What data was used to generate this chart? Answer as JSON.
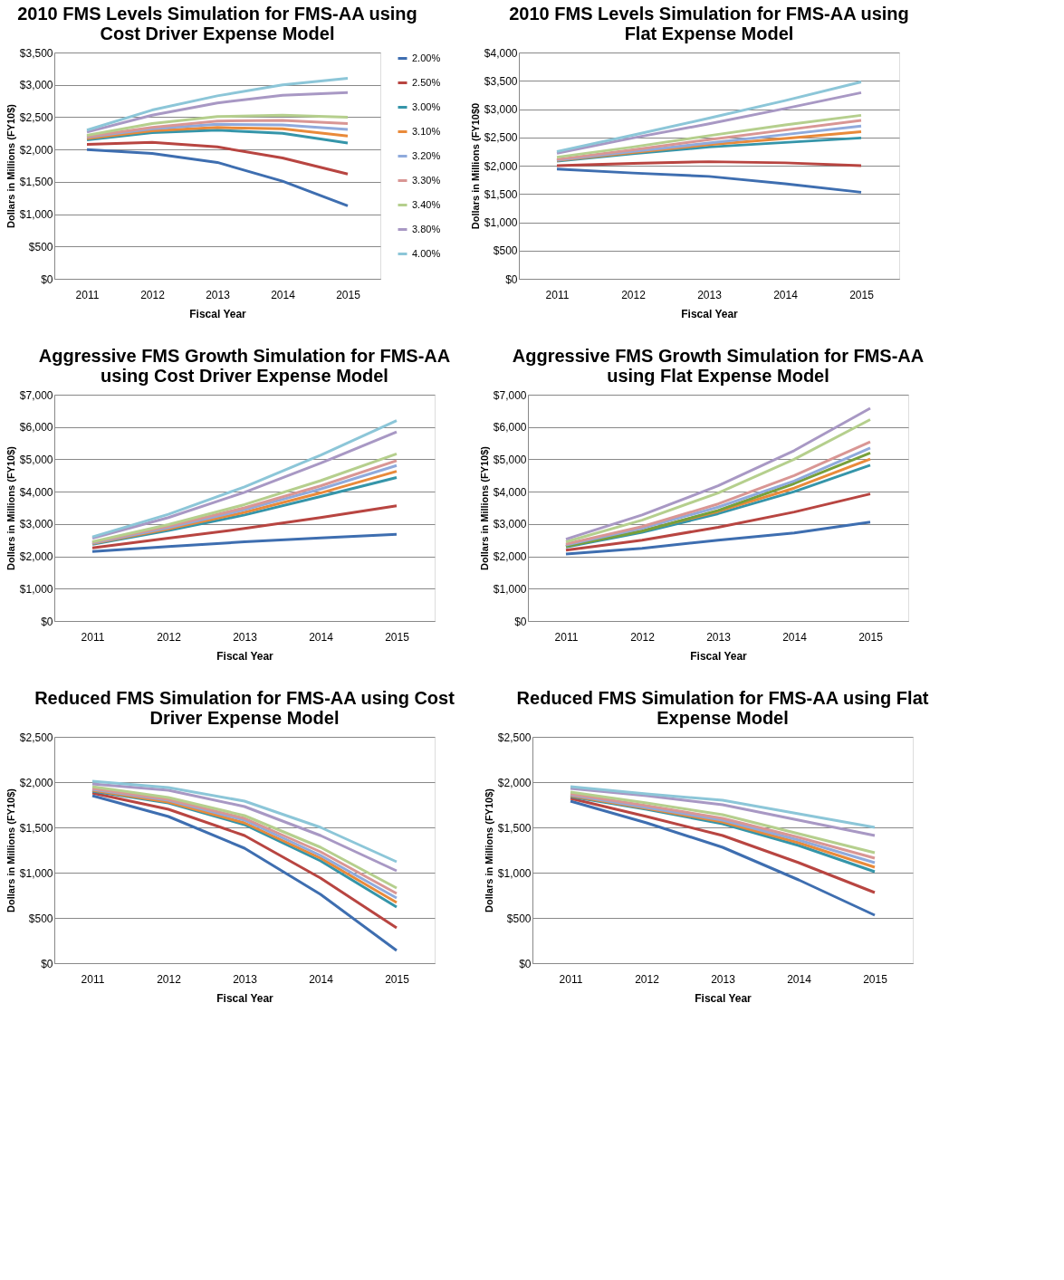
{
  "chart_data": [
    {
      "type": "line",
      "title": "2010 FMS Levels Simulation for FMS-AA using Cost Driver Expense Model",
      "xlabel": "Fiscal Year",
      "ylabel": "Dollars in Millions  (FY10$)",
      "categories": [
        "2011",
        "2012",
        "2013",
        "2014",
        "2015"
      ],
      "ylim": [
        0,
        3500
      ],
      "yticks": [
        {
          "value": 0,
          "label": "$0"
        },
        {
          "value": 500,
          "label": "$500"
        },
        {
          "value": 1000,
          "label": "$1,000"
        },
        {
          "value": 1500,
          "label": "$1,500"
        },
        {
          "value": 2000,
          "label": "$2,000"
        },
        {
          "value": 2500,
          "label": "$2,500"
        },
        {
          "value": 3000,
          "label": "$3,000"
        },
        {
          "value": 3500,
          "label": "$3,500"
        }
      ],
      "grid": "y",
      "legend": "right",
      "marker": "none",
      "series": [
        {
          "name": "2.00%",
          "color": "#3e6eb0",
          "values": [
            2000,
            1940,
            1800,
            1510,
            1130
          ]
        },
        {
          "name": "2.50%",
          "color": "#b84541",
          "values": [
            2080,
            2110,
            2040,
            1870,
            1620
          ]
        },
        {
          "name": "3.00%",
          "color": "#3595a9",
          "values": [
            2150,
            2260,
            2300,
            2250,
            2100
          ]
        },
        {
          "name": "3.10%",
          "color": "#e98a3a",
          "values": [
            2170,
            2290,
            2340,
            2320,
            2210
          ]
        },
        {
          "name": "3.20%",
          "color": "#8faadc",
          "values": [
            2190,
            2320,
            2390,
            2380,
            2310
          ]
        },
        {
          "name": "3.30%",
          "color": "#d99694",
          "values": [
            2200,
            2340,
            2440,
            2450,
            2400
          ]
        },
        {
          "name": "3.40%",
          "color": "#b5cf8d",
          "values": [
            2220,
            2400,
            2510,
            2530,
            2500
          ]
        },
        {
          "name": "3.80%",
          "color": "#a898c4",
          "values": [
            2270,
            2530,
            2720,
            2840,
            2880
          ]
        },
        {
          "name": "4.00%",
          "color": "#8cc6d8",
          "values": [
            2300,
            2610,
            2830,
            3000,
            3100
          ]
        }
      ]
    },
    {
      "type": "line",
      "title": "2010 FMS Levels Simulation for FMS-AA using Flat Expense Model",
      "xlabel": "Fiscal Year",
      "ylabel": "Dollars in Millions  (FY10$0",
      "categories": [
        "2011",
        "2012",
        "2013",
        "2014",
        "2015"
      ],
      "ylim": [
        0,
        4000
      ],
      "yticks": [
        {
          "value": 0,
          "label": "$0"
        },
        {
          "value": 500,
          "label": "$500"
        },
        {
          "value": 1000,
          "label": "$1,000"
        },
        {
          "value": 1500,
          "label": "$1,500"
        },
        {
          "value": 2000,
          "label": "$2,000"
        },
        {
          "value": 2500,
          "label": "$2,500"
        },
        {
          "value": 3000,
          "label": "$3,000"
        },
        {
          "value": 3500,
          "label": "$3,500"
        },
        {
          "value": 4000,
          "label": "$4,000"
        }
      ],
      "grid": "y",
      "marker": "none",
      "series": [
        {
          "color": "#3e6eb0",
          "values": [
            1940,
            1870,
            1810,
            1680,
            1530
          ]
        },
        {
          "color": "#b84541",
          "values": [
            2000,
            2040,
            2070,
            2050,
            2000
          ]
        },
        {
          "color": "#3595a9",
          "values": [
            2080,
            2210,
            2330,
            2410,
            2490
          ]
        },
        {
          "color": "#e98a3a",
          "values": [
            2090,
            2230,
            2370,
            2480,
            2600
          ]
        },
        {
          "color": "#8faadc",
          "values": [
            2100,
            2250,
            2400,
            2550,
            2700
          ]
        },
        {
          "color": "#d99694",
          "values": [
            2110,
            2280,
            2460,
            2630,
            2800
          ]
        },
        {
          "color": "#b5cf8d",
          "values": [
            2150,
            2330,
            2530,
            2720,
            2890
          ]
        },
        {
          "color": "#a898c4",
          "values": [
            2220,
            2490,
            2740,
            3010,
            3290
          ]
        },
        {
          "color": "#8cc6d8",
          "values": [
            2250,
            2540,
            2840,
            3150,
            3480
          ]
        }
      ]
    },
    {
      "type": "line",
      "title": "Aggressive FMS Growth Simulation for FMS-AA using Cost Driver Expense Model",
      "xlabel": "Fiscal Year",
      "ylabel": "Dollars in Millions  (FY10$)",
      "categories": [
        "2011",
        "2012",
        "2013",
        "2014",
        "2015"
      ],
      "ylim": [
        0,
        7000
      ],
      "yticks": [
        {
          "value": 0,
          "label": "$0"
        },
        {
          "value": 1000,
          "label": "$1,000"
        },
        {
          "value": 2000,
          "label": "$2,000"
        },
        {
          "value": 3000,
          "label": "$3,000"
        },
        {
          "value": 4000,
          "label": "$4,000"
        },
        {
          "value": 5000,
          "label": "$5,000"
        },
        {
          "value": 6000,
          "label": "$6,000"
        },
        {
          "value": 7000,
          "label": "$7,000"
        }
      ],
      "grid": "y",
      "marker": "none",
      "series": [
        {
          "color": "#3e6eb0",
          "values": [
            2150,
            2300,
            2450,
            2570,
            2680
          ]
        },
        {
          "color": "#b84541",
          "values": [
            2260,
            2560,
            2860,
            3200,
            3560
          ]
        },
        {
          "color": "#3595a9",
          "values": [
            2370,
            2800,
            3280,
            3850,
            4440
          ]
        },
        {
          "color": "#e98a3a",
          "values": [
            2390,
            2850,
            3360,
            3960,
            4630
          ]
        },
        {
          "color": "#8faadc",
          "values": [
            2410,
            2890,
            3440,
            4080,
            4810
          ]
        },
        {
          "color": "#d99694",
          "values": [
            2430,
            2930,
            3500,
            4180,
            4960
          ]
        },
        {
          "color": "#b5cf8d",
          "values": [
            2450,
            2980,
            3600,
            4340,
            5170
          ]
        },
        {
          "color": "#a898c4",
          "values": [
            2560,
            3200,
            3980,
            4880,
            5850
          ]
        },
        {
          "color": "#8cc6d8",
          "values": [
            2600,
            3300,
            4150,
            5130,
            6200
          ]
        }
      ]
    },
    {
      "type": "line",
      "title": "Aggressive FMS Growth Simulation for FMS-AA using Flat Expense Model",
      "xlabel": "Fiscal Year",
      "ylabel": "Dollars in Millions  (FY10$)",
      "categories": [
        "2011",
        "2012",
        "2013",
        "2014",
        "2015"
      ],
      "ylim": [
        0,
        7000
      ],
      "yticks": [
        {
          "value": 0,
          "label": "$0"
        },
        {
          "value": 1000,
          "label": "$1,000"
        },
        {
          "value": 2000,
          "label": "$2,000"
        },
        {
          "value": 3000,
          "label": "$3,000"
        },
        {
          "value": 4000,
          "label": "$4,000"
        },
        {
          "value": 5000,
          "label": "$5,000"
        },
        {
          "value": 6000,
          "label": "$6,000"
        },
        {
          "value": 7000,
          "label": "$7,000"
        }
      ],
      "grid": "y",
      "marker": "none",
      "series": [
        {
          "color": "#3e6eb0",
          "values": [
            2070,
            2250,
            2500,
            2720,
            3060
          ]
        },
        {
          "color": "#b84541",
          "values": [
            2190,
            2500,
            2900,
            3370,
            3930
          ]
        },
        {
          "color": "#3595a9",
          "values": [
            2290,
            2740,
            3320,
            4000,
            4820
          ]
        },
        {
          "color": "#e98a3a",
          "values": [
            2320,
            2790,
            3390,
            4110,
            5010
          ]
        },
        {
          "color": "#77a03a",
          "values": [
            2310,
            2780,
            3420,
            4250,
            5200
          ]
        },
        {
          "color": "#8faadc",
          "values": [
            2350,
            2870,
            3520,
            4330,
            5350
          ]
        },
        {
          "color": "#d99694",
          "values": [
            2380,
            2920,
            3620,
            4500,
            5540
          ]
        },
        {
          "color": "#b5cf8d",
          "values": [
            2450,
            3120,
            3960,
            5000,
            6230
          ]
        },
        {
          "color": "#a898c4",
          "values": [
            2530,
            3280,
            4180,
            5270,
            6580
          ]
        }
      ]
    },
    {
      "type": "line",
      "title": "Reduced FMS Simulation for FMS-AA using Cost Driver Expense Model",
      "xlabel": "Fiscal Year",
      "ylabel": "Dollars in Millions  (FY10$)",
      "categories": [
        "2011",
        "2012",
        "2013",
        "2014",
        "2015"
      ],
      "ylim": [
        0,
        2500
      ],
      "yticks": [
        {
          "value": 0,
          "label": "$0"
        },
        {
          "value": 500,
          "label": "$500"
        },
        {
          "value": 1000,
          "label": "$1,000"
        },
        {
          "value": 1500,
          "label": "$1,500"
        },
        {
          "value": 2000,
          "label": "$2,000"
        },
        {
          "value": 2500,
          "label": "$2,500"
        }
      ],
      "grid": "y",
      "marker": "none",
      "series": [
        {
          "color": "#3e6eb0",
          "values": [
            1850,
            1620,
            1270,
            760,
            140
          ]
        },
        {
          "color": "#b84541",
          "values": [
            1880,
            1700,
            1410,
            940,
            390
          ]
        },
        {
          "color": "#3595a9",
          "values": [
            1900,
            1770,
            1530,
            1130,
            620
          ]
        },
        {
          "color": "#e98a3a",
          "values": [
            1910,
            1780,
            1550,
            1160,
            670
          ]
        },
        {
          "color": "#8faadc",
          "values": [
            1920,
            1800,
            1580,
            1190,
            720
          ]
        },
        {
          "color": "#d99694",
          "values": [
            1930,
            1810,
            1600,
            1230,
            770
          ]
        },
        {
          "color": "#b5cf8d",
          "values": [
            1950,
            1830,
            1630,
            1280,
            830
          ]
        },
        {
          "color": "#a898c4",
          "values": [
            1980,
            1910,
            1730,
            1410,
            1020
          ]
        },
        {
          "color": "#8cc6d8",
          "values": [
            2010,
            1940,
            1790,
            1500,
            1120
          ]
        }
      ]
    },
    {
      "type": "line",
      "title": "Reduced FMS Simulation for FMS-AA using Flat Expense Model",
      "xlabel": "Fiscal Year",
      "ylabel": "Dollars in Millions  (FY10$)",
      "categories": [
        "2011",
        "2012",
        "2013",
        "2014",
        "2015"
      ],
      "ylim": [
        0,
        2500
      ],
      "yticks": [
        {
          "value": 0,
          "label": "$0"
        },
        {
          "value": 500,
          "label": "$500"
        },
        {
          "value": 1000,
          "label": "$1,000"
        },
        {
          "value": 1500,
          "label": "$1,500"
        },
        {
          "value": 2000,
          "label": "$2,000"
        },
        {
          "value": 2500,
          "label": "$2,500"
        }
      ],
      "grid": "y",
      "marker": "none",
      "series": [
        {
          "color": "#3e6eb0",
          "values": [
            1790,
            1550,
            1280,
            920,
            530
          ]
        },
        {
          "color": "#b84541",
          "values": [
            1820,
            1620,
            1410,
            1110,
            780
          ]
        },
        {
          "color": "#3595a9",
          "values": [
            1840,
            1700,
            1540,
            1300,
            1010
          ]
        },
        {
          "color": "#e98a3a",
          "values": [
            1850,
            1710,
            1560,
            1330,
            1060
          ]
        },
        {
          "color": "#8faadc",
          "values": [
            1860,
            1720,
            1580,
            1360,
            1110
          ]
        },
        {
          "color": "#d99694",
          "values": [
            1870,
            1740,
            1600,
            1390,
            1160
          ]
        },
        {
          "color": "#b5cf8d",
          "values": [
            1890,
            1770,
            1640,
            1430,
            1220
          ]
        },
        {
          "color": "#a898c4",
          "values": [
            1930,
            1850,
            1750,
            1580,
            1410
          ]
        },
        {
          "color": "#8cc6d8",
          "values": [
            1950,
            1870,
            1800,
            1650,
            1500
          ]
        }
      ]
    }
  ]
}
